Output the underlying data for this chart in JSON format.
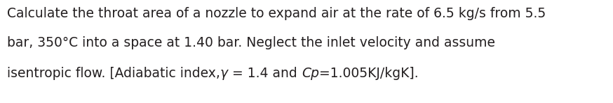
{
  "line1": "Calculate the throat area of a nozzle to expand air at the rate of 6.5 kg/s from 5.5",
  "line2": "bar, 350°C into a space at 1.40 bar. Neglect the inlet velocity and assume",
  "line3_seg1": "isentropic flow. [Adiabatic index,",
  "line3_seg2": "γ",
  "line3_seg3": " = 1.4 and ",
  "line3_seg4": "Cp",
  "line3_seg5": "=1.005KJ/kgK].",
  "font_size": 13.5,
  "background_color": "#ffffff",
  "text_color": "#231f20",
  "fig_width": 8.74,
  "fig_height": 1.48,
  "dpi": 100
}
